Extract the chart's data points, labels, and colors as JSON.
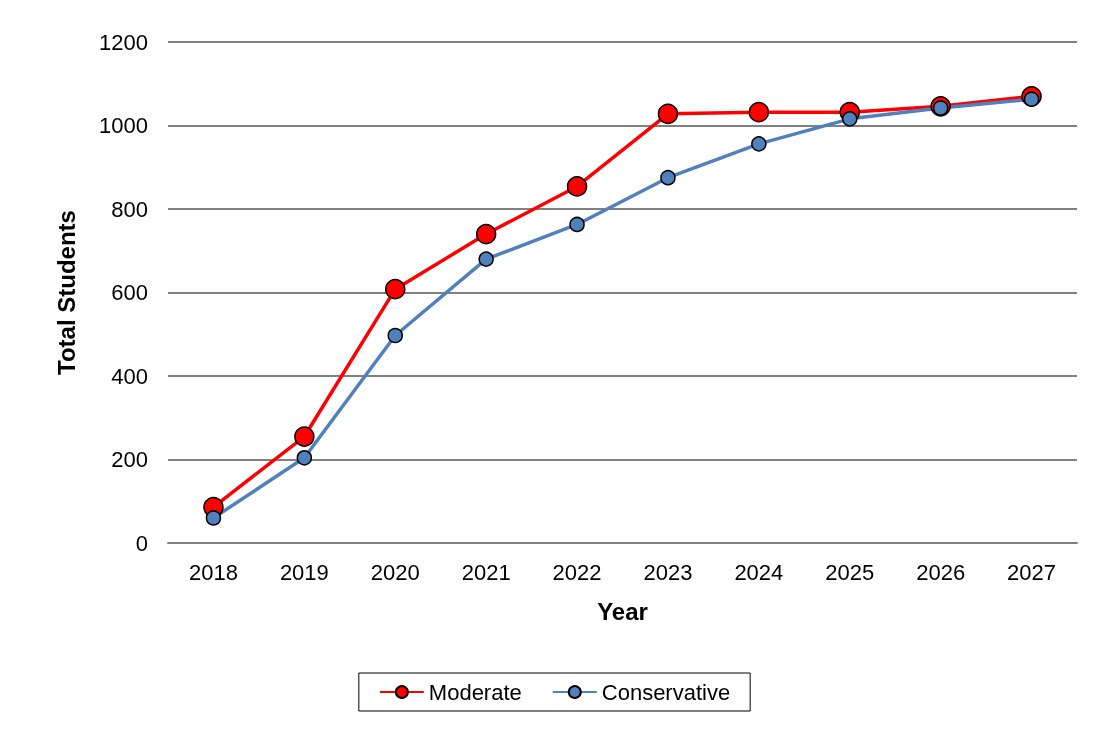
{
  "chart_data": {
    "type": "line",
    "xlabel": "Year",
    "ylabel": "Total Students",
    "categories": [
      "2018",
      "2019",
      "2020",
      "2021",
      "2022",
      "2023",
      "2024",
      "2025",
      "2026",
      "2027"
    ],
    "series": [
      {
        "name": "Moderate",
        "color": "#ff0000",
        "values": [
          86,
          255,
          608,
          740,
          854,
          1028,
          1032,
          1032,
          1046,
          1070
        ]
      },
      {
        "name": "Conservative",
        "color": "#4f81bd",
        "values": [
          60,
          204,
          497,
          680,
          763,
          875,
          956,
          1016,
          1042,
          1063
        ]
      }
    ],
    "ylim": [
      0,
      1200
    ],
    "yticks": [
      0,
      200,
      400,
      600,
      800,
      1000,
      1200
    ],
    "grid": "y",
    "legend": "bottom",
    "marker": "circle",
    "line_style": "solid"
  }
}
